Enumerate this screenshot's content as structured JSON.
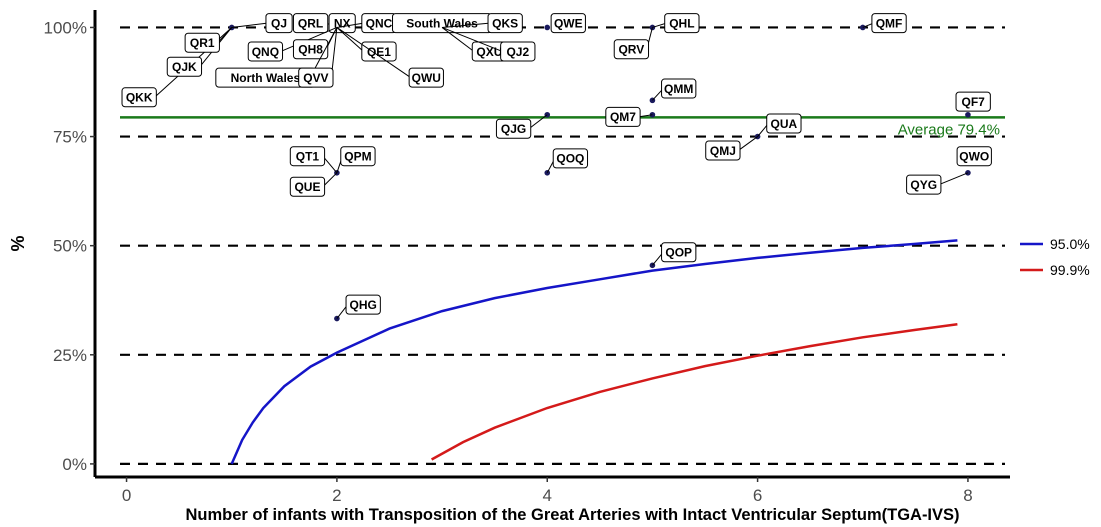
{
  "chart_data": {
    "type": "scatter",
    "title": "",
    "xlabel": "Number of infants with Transposition of the Great Arteries with Intact Ventricular Septum(TGA-IVS)",
    "ylabel": "%",
    "xlim": [
      -0.3,
      8.4
    ],
    "ylim": [
      -3,
      104
    ],
    "x_ticks": [
      0,
      2,
      4,
      6,
      8
    ],
    "x_tick_labels": [
      "0",
      "2",
      "4",
      "6",
      "8"
    ],
    "y_ticks": [
      0,
      25,
      50,
      75,
      100
    ],
    "y_tick_labels": [
      "0%",
      "25%",
      "50%",
      "75%",
      "100%"
    ],
    "grid": false,
    "reference_lines": [
      0,
      25,
      50,
      75,
      100
    ],
    "average": {
      "value": 79.4,
      "label": "Average 79.4%",
      "color": "#1a7a1a"
    },
    "legend_position": "right",
    "point_color": "#1a1a5e",
    "points": [
      {
        "label": "QKK",
        "x": 1,
        "y": 100,
        "lx": 0.12,
        "ly": 84
      },
      {
        "label": "QJK",
        "x": 1,
        "y": 100,
        "lx": 0.55,
        "ly": 91
      },
      {
        "label": "QR1",
        "x": 1,
        "y": 100,
        "lx": 0.72,
        "ly": 96.5
      },
      {
        "label": "QJ",
        "x": 1,
        "y": 100,
        "lx": 1.45,
        "ly": 101
      },
      {
        "label": "QRL",
        "x": 2,
        "y": 100,
        "lx": 1.75,
        "ly": 101
      },
      {
        "label": "NX",
        "x": 2,
        "y": 100,
        "lx": 2.05,
        "ly": 101
      },
      {
        "label": "QNC",
        "x": 2,
        "y": 100,
        "lx": 2.4,
        "ly": 101
      },
      {
        "label": "QNQ",
        "x": 2,
        "y": 100,
        "lx": 1.32,
        "ly": 94.5
      },
      {
        "label": "QH8",
        "x": 2,
        "y": 100,
        "lx": 1.75,
        "ly": 95
      },
      {
        "label": "North Wales",
        "x": 2,
        "y": 100,
        "lx": 1.32,
        "ly": 88.5
      },
      {
        "label": "QVV",
        "x": 2,
        "y": 100,
        "lx": 1.8,
        "ly": 88.5
      },
      {
        "label": "QE1",
        "x": 2,
        "y": 100,
        "lx": 2.4,
        "ly": 94.5
      },
      {
        "label": "QWU",
        "x": 2,
        "y": 100,
        "lx": 2.85,
        "ly": 88.5
      },
      {
        "label": "South Wales",
        "x": 3,
        "y": 100,
        "lx": 3.0,
        "ly": 101
      },
      {
        "label": "QKS",
        "x": 3,
        "y": 100,
        "lx": 3.6,
        "ly": 101
      },
      {
        "label": "QXU",
        "x": 3,
        "y": 100,
        "lx": 3.45,
        "ly": 94.5
      },
      {
        "label": "QJ2",
        "x": 3,
        "y": 100,
        "lx": 3.72,
        "ly": 94.5
      },
      {
        "label": "QWE",
        "x": 4,
        "y": 100,
        "lx": 4.2,
        "ly": 101
      },
      {
        "label": "QRV",
        "x": 5,
        "y": 100,
        "lx": 4.8,
        "ly": 95
      },
      {
        "label": "QHL",
        "x": 5,
        "y": 100,
        "lx": 5.28,
        "ly": 101
      },
      {
        "label": "QMF",
        "x": 7,
        "y": 100,
        "lx": 7.25,
        "ly": 101
      },
      {
        "label": "QMM",
        "x": 5,
        "y": 83.3,
        "lx": 5.25,
        "ly": 86
      },
      {
        "label": "QJG",
        "x": 4,
        "y": 80,
        "lx": 3.68,
        "ly": 76.8
      },
      {
        "label": "QM7",
        "x": 5,
        "y": 80,
        "lx": 4.72,
        "ly": 79.5
      },
      {
        "label": "QUA",
        "x": 6,
        "y": 75,
        "lx": 6.25,
        "ly": 78
      },
      {
        "label": "QMJ",
        "x": 6,
        "y": 75,
        "lx": 5.67,
        "ly": 71.8
      },
      {
        "label": "QF7",
        "x": 8,
        "y": 80,
        "lx": 8.05,
        "ly": 83
      },
      {
        "label": "QT1",
        "x": 2,
        "y": 66.7,
        "lx": 1.72,
        "ly": 70.5
      },
      {
        "label": "QPM",
        "x": 2,
        "y": 66.7,
        "lx": 2.2,
        "ly": 70.5
      },
      {
        "label": "QUE",
        "x": 2,
        "y": 66.7,
        "lx": 1.72,
        "ly": 63.5
      },
      {
        "label": "QOQ",
        "x": 4,
        "y": 66.7,
        "lx": 4.22,
        "ly": 70
      },
      {
        "label": "QWO",
        "x": 8,
        "y": 66.7,
        "lx": 8.06,
        "ly": 70.5
      },
      {
        "label": "QYG",
        "x": 8,
        "y": 66.7,
        "lx": 7.58,
        "ly": 64
      },
      {
        "label": "QOP",
        "x": 5,
        "y": 45.5,
        "lx": 5.25,
        "ly": 48.5
      },
      {
        "label": "QHG",
        "x": 2,
        "y": 33.3,
        "lx": 2.25,
        "ly": 36.5
      }
    ],
    "series": [
      {
        "name": "95.0%",
        "color": "#1515c8",
        "x": [
          1.0,
          1.1,
          1.2,
          1.3,
          1.5,
          1.75,
          2.0,
          2.5,
          3.0,
          3.5,
          4.0,
          4.5,
          5.0,
          5.5,
          6.0,
          6.5,
          7.0,
          7.5,
          7.9
        ],
        "values": [
          0,
          5.5,
          9.5,
          12.8,
          17.8,
          22.3,
          25.5,
          31,
          35,
          38,
          40.3,
          42.3,
          44.3,
          45.8,
          47.2,
          48.4,
          49.5,
          50.4,
          51.2
        ]
      },
      {
        "name": "99.9%",
        "color": "#d41a1a",
        "x": [
          2.9,
          3.2,
          3.5,
          4.0,
          4.5,
          5.0,
          5.5,
          6.0,
          6.5,
          7.0,
          7.5,
          7.9
        ],
        "values": [
          1,
          5,
          8.3,
          12.8,
          16.5,
          19.6,
          22.4,
          24.8,
          27.0,
          29.0,
          30.7,
          32.0
        ]
      }
    ]
  }
}
